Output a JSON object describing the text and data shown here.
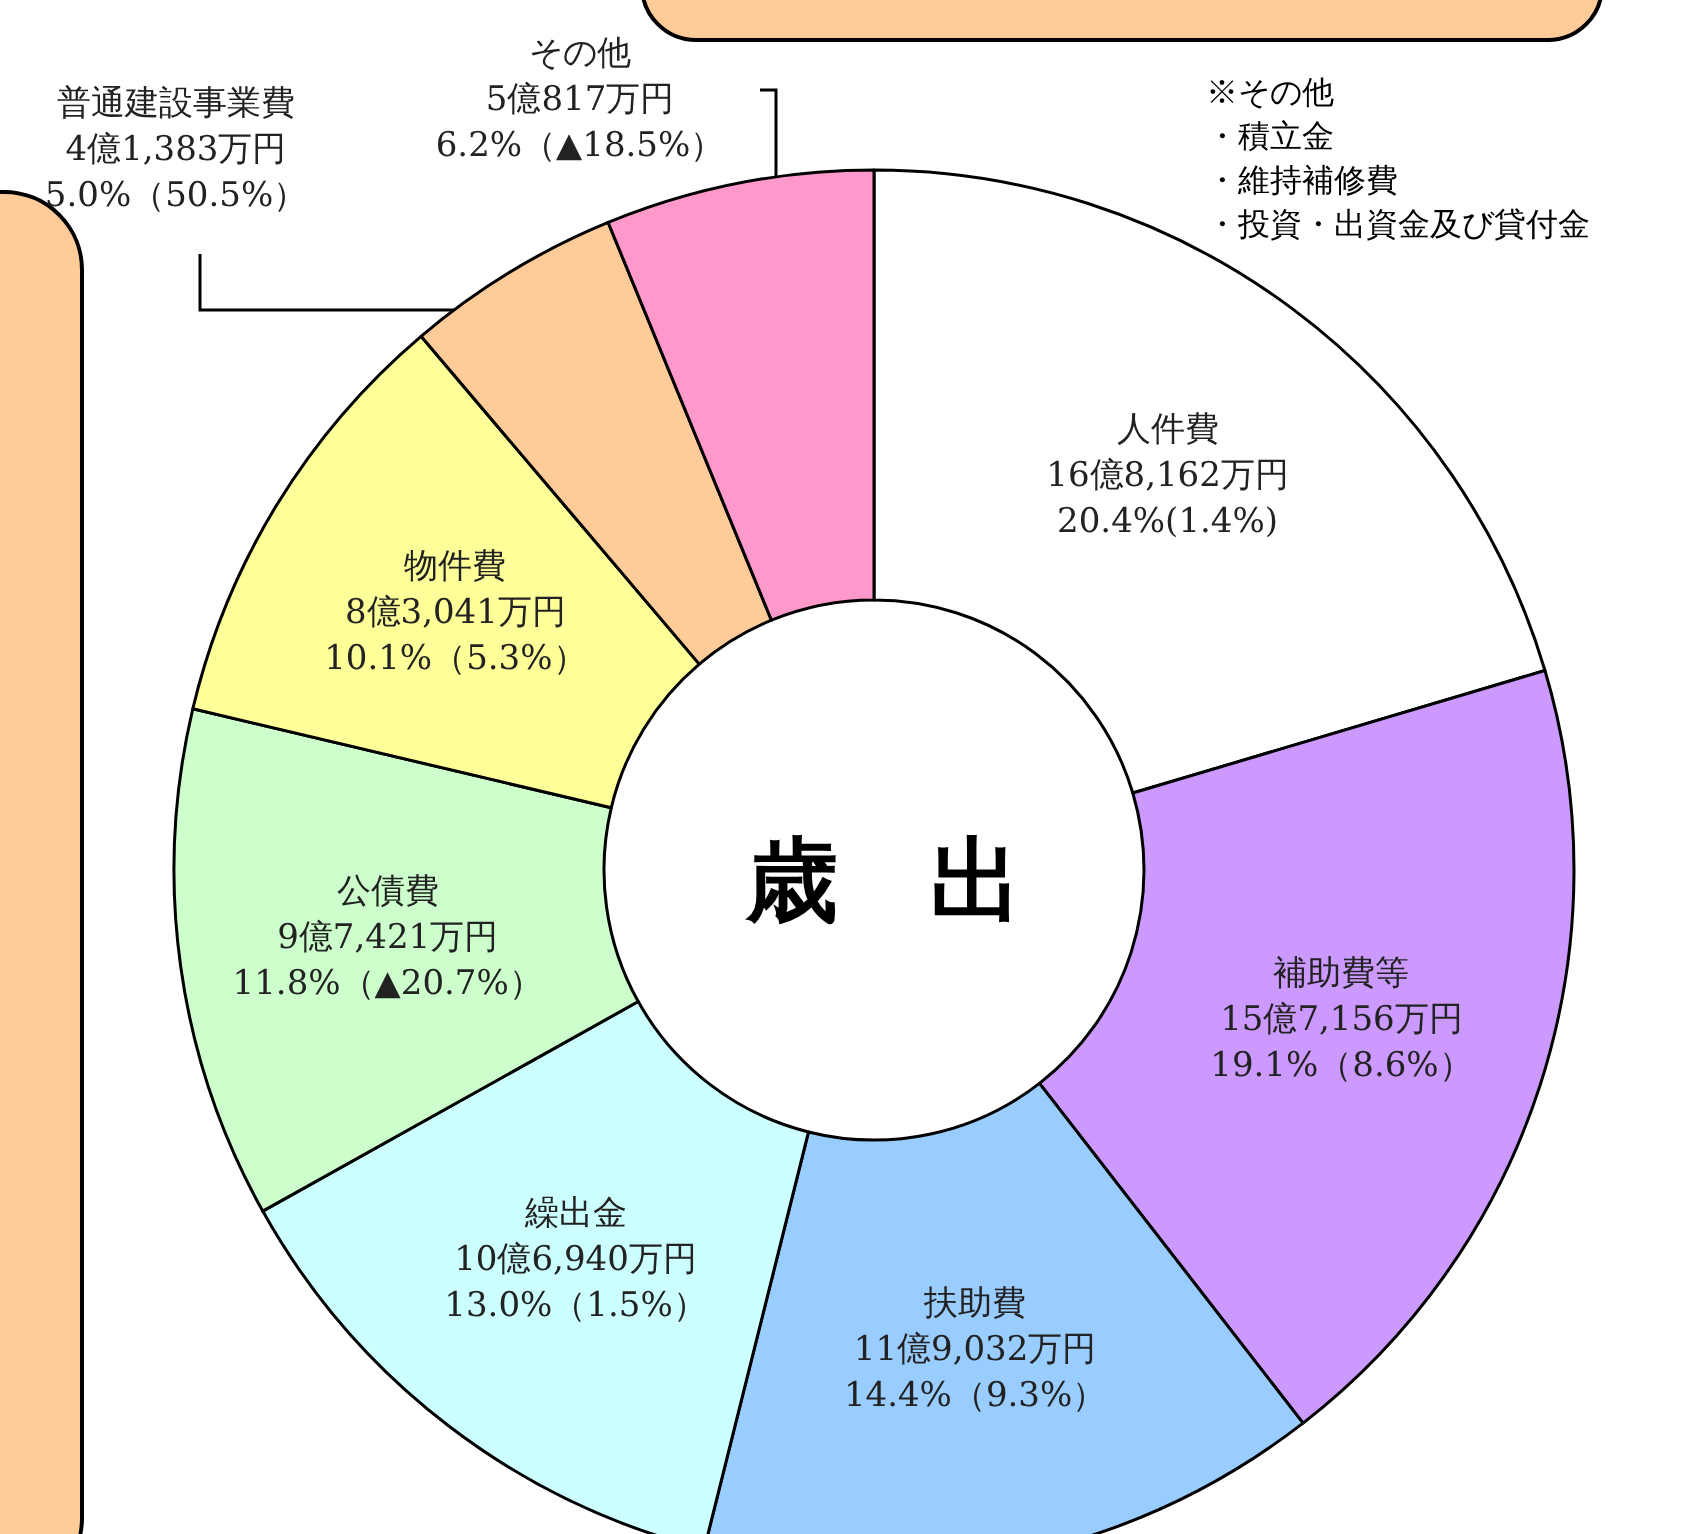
{
  "chart_data": {
    "type": "donut",
    "title": "歳　出",
    "categories": [
      "人件費",
      "補助費等",
      "扶助費",
      "繰出金",
      "公債費",
      "物件費",
      "普通建設事業費",
      "その他"
    ],
    "values": [
      20.4,
      19.1,
      14.4,
      13.0,
      11.8,
      10.1,
      5.0,
      6.2
    ],
    "value_labels": [
      "16億8,162万円\n20.4%(1.4%)",
      "15億7,156万円\n19.1%（8.6%）",
      "11億9,032万円\n14.4%（9.3%）",
      "10億6,940万円\n13.0%（1.5%）",
      "9億7,421万円\n11.8%（▲20.7%）",
      "8億3,041万円\n10.1%（5.3%）",
      "4億1,383万円\n5.0%（50.5%）",
      "5億817万円\n6.2%（▲18.5%）"
    ],
    "colors": [
      "#ffffff",
      "#cc99ff",
      "#99ccff",
      "#ccffff",
      "#ccffcc",
      "#ffff99",
      "#ffcc99",
      "#ff99cc"
    ],
    "annotations": [
      "※その他",
      "・積立金",
      "・維持補修費",
      "・投資・出資金及び貸付金"
    ]
  }
}
